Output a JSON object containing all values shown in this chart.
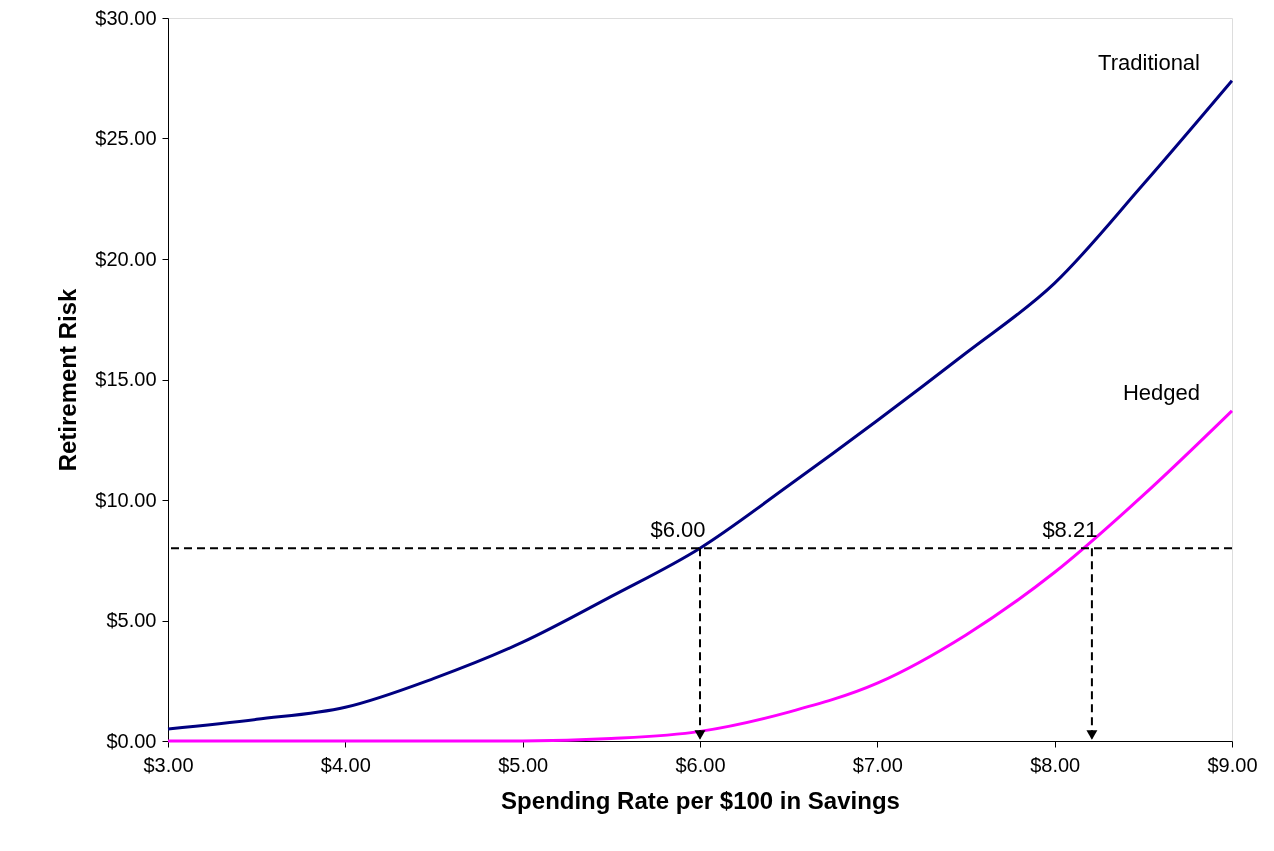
{
  "chart_data": {
    "type": "line",
    "xlabel": "Spending Rate per $100 in Savings",
    "ylabel": "Retirement Risk",
    "xlim": [
      3,
      9
    ],
    "ylim": [
      0,
      30
    ],
    "xticks": [
      {
        "value": 3,
        "label": "$3.00"
      },
      {
        "value": 4,
        "label": "$4.00"
      },
      {
        "value": 5,
        "label": "$5.00"
      },
      {
        "value": 6,
        "label": "$6.00"
      },
      {
        "value": 7,
        "label": "$7.00"
      },
      {
        "value": 8,
        "label": "$8.00"
      },
      {
        "value": 9,
        "label": "$9.00"
      }
    ],
    "yticks": [
      {
        "value": 0,
        "label": "$0.00"
      },
      {
        "value": 5,
        "label": "$5.00"
      },
      {
        "value": 10,
        "label": "$10.00"
      },
      {
        "value": 15,
        "label": "$15.00"
      },
      {
        "value": 20,
        "label": "$20.00"
      },
      {
        "value": 25,
        "label": "$25.00"
      },
      {
        "value": 30,
        "label": "$30.00"
      }
    ],
    "x": [
      3,
      3.5,
      4,
      4.5,
      5,
      5.5,
      6,
      6.5,
      7,
      7.5,
      8,
      8.5,
      9
    ],
    "series": [
      {
        "name": "Traditional",
        "color": "#000080",
        "values": [
          0.5,
          0.9,
          1.4,
          2.6,
          4.1,
          6.0,
          8.0,
          10.6,
          13.3,
          16.1,
          19.0,
          23.1,
          27.4
        ]
      },
      {
        "name": "Hedged",
        "color": "#ff00ff",
        "values": [
          0,
          0,
          0,
          0,
          0,
          0.1,
          0.4,
          1.2,
          2.4,
          4.4,
          7.0,
          10.2,
          13.7
        ]
      }
    ],
    "ref_lines": [
      {
        "axis": "y",
        "value": 8,
        "color": "#000000",
        "line_style": "dashed"
      }
    ],
    "annotations": [
      {
        "text": "$6.00",
        "x": 6,
        "y": 8
      },
      {
        "text": "$8.21",
        "x": 8.21,
        "y": 8
      }
    ],
    "grid": false,
    "marker": "none",
    "line_style": "solid"
  }
}
